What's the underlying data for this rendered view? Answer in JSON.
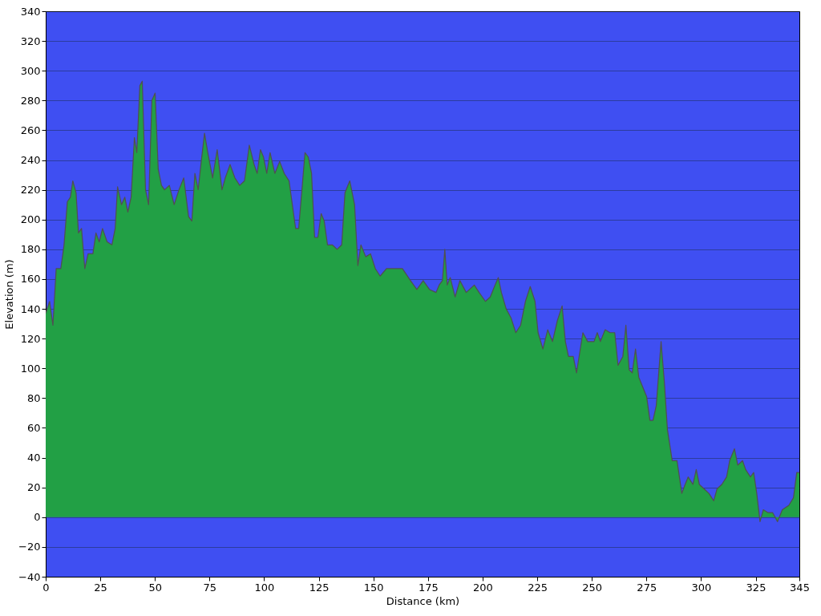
{
  "chart_data": {
    "type": "area",
    "xlabel": "Distance  (km)",
    "ylabel": "Elevation (m)",
    "xlim": [
      0,
      345
    ],
    "xticks": [
      0,
      25,
      50,
      75,
      100,
      125,
      150,
      175,
      200,
      225,
      250,
      275,
      300,
      325,
      345
    ],
    "ylim": [
      -40,
      340
    ],
    "yticks": [
      -40,
      -20,
      0,
      20,
      40,
      60,
      80,
      100,
      120,
      140,
      160,
      180,
      200,
      220,
      240,
      260,
      280,
      300,
      320,
      340
    ],
    "grid": "y",
    "x": [
      0,
      1.8,
      3.3,
      4.8,
      6.9,
      8.4,
      9.9,
      11.3,
      12.4,
      13.9,
      15.0,
      16.4,
      17.9,
      19.4,
      21.6,
      23.0,
      24.5,
      26.0,
      28.1,
      30.3,
      31.8,
      32.9,
      34.7,
      36.2,
      37.6,
      39.1,
      40.6,
      41.7,
      43.1,
      44.2,
      45.7,
      47.1,
      48.6,
      50.1,
      51.5,
      53.0,
      54.4,
      56.6,
      58.8,
      61.0,
      63.2,
      65.4,
      66.9,
      68.3,
      69.8,
      71.2,
      72.7,
      74.2,
      76.4,
      78.5,
      80.7,
      82.2,
      84.4,
      86.6,
      88.8,
      91.0,
      93.2,
      95.4,
      96.8,
      98.3,
      99.7,
      101.2,
      102.7,
      104.9,
      107.1,
      109.2,
      111.4,
      112.9,
      114.4,
      115.8,
      117.3,
      118.7,
      120.2,
      121.7,
      123.1,
      124.6,
      126.1,
      127.5,
      129.0,
      131.2,
      133.4,
      135.5,
      137.0,
      139.2,
      141.4,
      142.9,
      144.3,
      146.5,
      148.7,
      150.9,
      153.1,
      156.0,
      159.7,
      163.3,
      167.0,
      169.9,
      172.8,
      175.7,
      178.7,
      180.1,
      181.6,
      182.7,
      183.8,
      185.2,
      187.4,
      189.6,
      192.5,
      196.2,
      198.4,
      201.3,
      203.5,
      205.7,
      207.2,
      208.6,
      210.8,
      213.0,
      215.2,
      217.4,
      219.6,
      221.8,
      224.0,
      225.4,
      227.6,
      229.8,
      232.0,
      234.2,
      236.4,
      237.9,
      239.3,
      241.5,
      243.0,
      245.9,
      248.1,
      251.0,
      252.5,
      253.9,
      256.1,
      258.3,
      260.5,
      262.0,
      264.2,
      265.6,
      267.1,
      268.5,
      270.0,
      271.5,
      272.9,
      275.1,
      276.6,
      278.0,
      279.5,
      281.7,
      283.2,
      284.6,
      286.8,
      289.0,
      291.2,
      292.7,
      294.1,
      296.3,
      297.8,
      299.2,
      301.4,
      303.6,
      305.8,
      307.3,
      309.5,
      311.7,
      313.1,
      315.3,
      316.8,
      319.0,
      320.4,
      322.6,
      324.1,
      325.5,
      327.0,
      328.5,
      330.7,
      332.8,
      335.0,
      337.2,
      340.2,
      342.3,
      343.8,
      345
    ],
    "series": [
      {
        "color": "#22a045",
        "values": [
          137,
          145,
          129,
          167,
          167,
          183,
          212,
          215,
          226,
          218,
          191,
          194,
          167,
          177,
          177,
          191,
          185,
          194,
          185,
          183,
          194,
          222,
          210,
          215,
          205,
          215,
          255,
          245,
          290,
          293,
          220,
          210,
          280,
          285,
          234,
          223,
          220,
          223,
          210,
          220,
          228,
          202,
          199,
          231,
          220,
          239,
          258,
          245,
          228,
          247,
          220,
          228,
          237,
          228,
          223,
          226,
          250,
          237,
          231,
          247,
          242,
          231,
          245,
          231,
          239,
          231,
          226,
          210,
          194,
          194,
          220,
          245,
          242,
          231,
          188,
          188,
          204,
          199,
          183,
          183,
          180,
          183,
          218,
          226,
          210,
          169,
          183,
          175,
          177,
          167,
          162,
          167,
          167,
          167,
          159,
          153,
          159,
          153,
          151,
          156,
          159,
          180,
          156,
          161,
          148,
          159,
          151,
          156,
          151,
          145,
          148,
          156,
          161,
          151,
          140,
          134,
          124,
          129,
          145,
          155,
          145,
          124,
          113,
          126,
          118,
          132,
          142,
          118,
          108,
          108,
          97,
          124,
          118,
          118,
          124,
          118,
          126,
          124,
          124,
          102,
          108,
          129,
          99,
          97,
          113,
          94,
          89,
          81,
          65,
          65,
          75,
          118,
          91,
          59,
          38,
          38,
          16,
          22,
          27,
          22,
          32,
          22,
          19,
          16,
          11,
          19,
          22,
          27,
          38,
          46,
          35,
          38,
          32,
          27,
          30,
          16,
          -3,
          5,
          3,
          3,
          -3,
          5,
          8,
          13,
          30,
          30
        ]
      }
    ]
  }
}
